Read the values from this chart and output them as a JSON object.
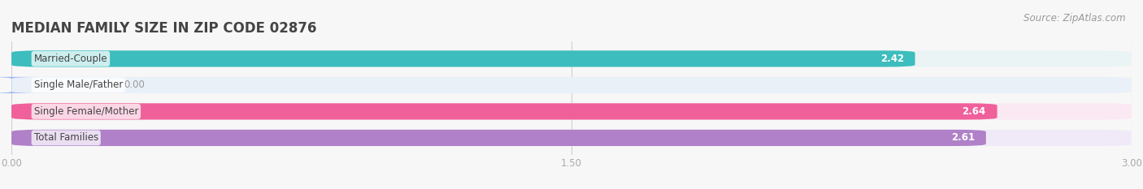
{
  "title": "MEDIAN FAMILY SIZE IN ZIP CODE 02876",
  "source": "Source: ZipAtlas.com",
  "categories": [
    "Married-Couple",
    "Single Male/Father",
    "Single Female/Mother",
    "Total Families"
  ],
  "values": [
    2.42,
    0.0,
    2.64,
    2.61
  ],
  "bar_colors": [
    "#3dbdbd",
    "#a0b8f0",
    "#f0609a",
    "#b080c8"
  ],
  "bar_bg_colors": [
    "#eaf4f4",
    "#eaf0f8",
    "#fae8f2",
    "#f0eaf8"
  ],
  "xlim": [
    0,
    3.0
  ],
  "xticks": [
    0.0,
    1.5,
    3.0
  ],
  "xtick_labels": [
    "0.00",
    "1.50",
    "3.00"
  ],
  "background_color": "#f7f7f7",
  "title_fontsize": 12,
  "label_fontsize": 8.5,
  "value_fontsize": 8.5,
  "source_fontsize": 8.5
}
